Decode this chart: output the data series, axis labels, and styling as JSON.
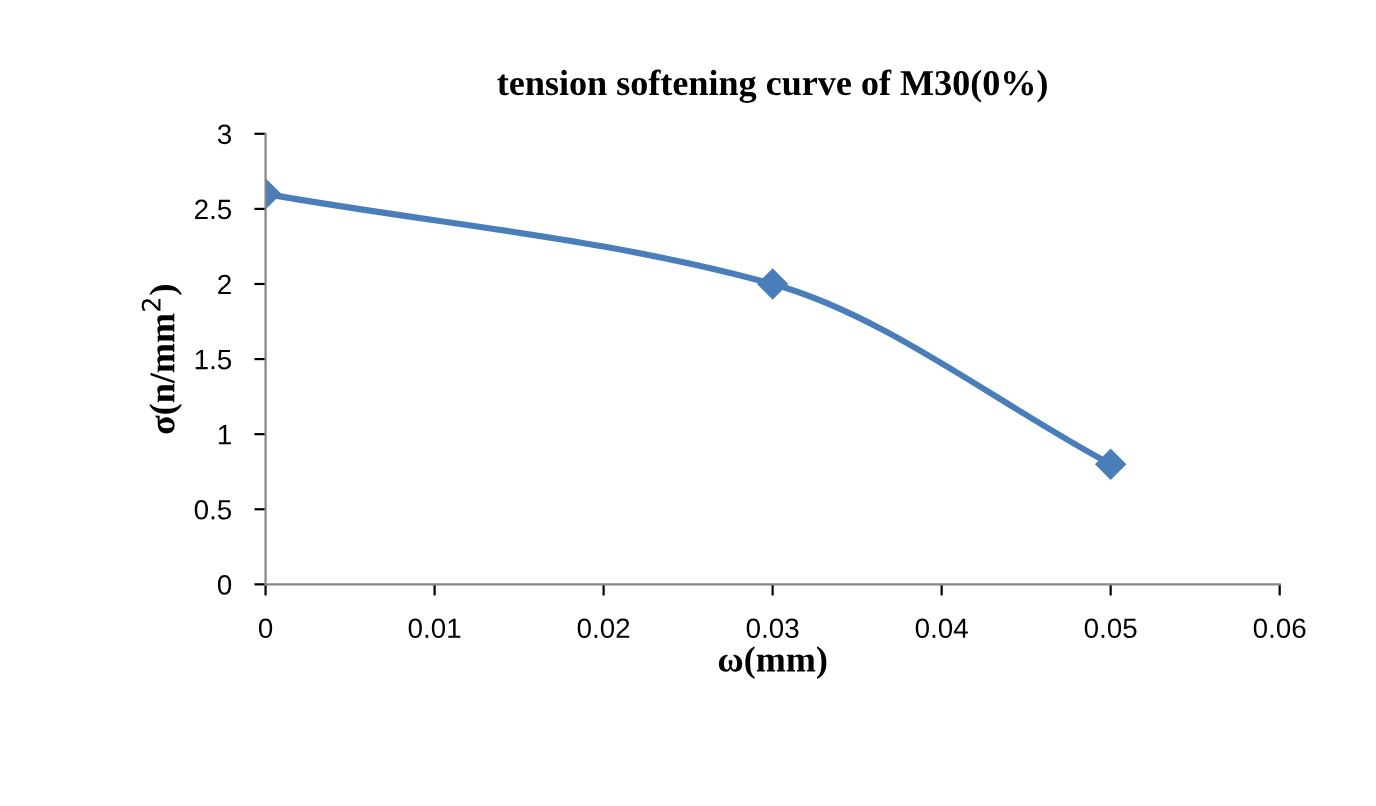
{
  "chart_data": {
    "type": "line",
    "title": "tension softening curve of M30(0%)",
    "xlabel": "ω(mm)",
    "ylabel": "σ(n/mm$^{2}$)",
    "x": [
      0,
      0.03,
      0.05
    ],
    "series": [
      {
        "color": "#4a7ebb",
        "values": [
          2.6,
          2.0,
          0.8
        ]
      }
    ],
    "xlim": [
      0,
      0.06
    ],
    "xticks": [
      0,
      0.01,
      0.02,
      0.03,
      0.04,
      0.05,
      0.06
    ],
    "ylim": [
      0,
      3
    ],
    "yticks": [
      0,
      0.5,
      1,
      1.5,
      2,
      2.5,
      3
    ],
    "grid": false,
    "legend": false,
    "marker": "diamond",
    "line_style": "solid"
  }
}
